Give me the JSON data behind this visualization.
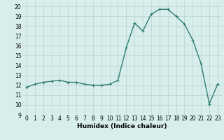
{
  "x": [
    0,
    1,
    2,
    3,
    4,
    5,
    6,
    7,
    8,
    9,
    10,
    11,
    12,
    13,
    14,
    15,
    16,
    17,
    18,
    19,
    20,
    21,
    22,
    23
  ],
  "y": [
    11.8,
    12.1,
    12.3,
    12.4,
    12.5,
    12.3,
    12.3,
    12.1,
    12.0,
    12.0,
    12.1,
    12.5,
    15.8,
    18.3,
    17.5,
    19.2,
    19.7,
    19.7,
    19.0,
    18.2,
    16.6,
    14.2,
    10.1,
    12.1
  ],
  "line_color": "#2e7d6e",
  "marker": "+",
  "marker_size": 3.5,
  "marker_color": "#2e7d6e",
  "bg_color": "#d8eeed",
  "grid_color": "#b8d0ce",
  "xlabel": "Humidex (Indice chaleur)",
  "ylabel": "",
  "xlim": [
    -0.5,
    23.5
  ],
  "ylim": [
    9,
    20.5
  ],
  "xticks": [
    0,
    1,
    2,
    3,
    4,
    5,
    6,
    7,
    8,
    9,
    10,
    11,
    12,
    13,
    14,
    15,
    16,
    17,
    18,
    19,
    20,
    21,
    22,
    23
  ],
  "yticks": [
    9,
    10,
    11,
    12,
    13,
    14,
    15,
    16,
    17,
    18,
    19,
    20
  ],
  "tick_fontsize": 5.5,
  "xlabel_fontsize": 6.5,
  "linewidth": 1.0
}
